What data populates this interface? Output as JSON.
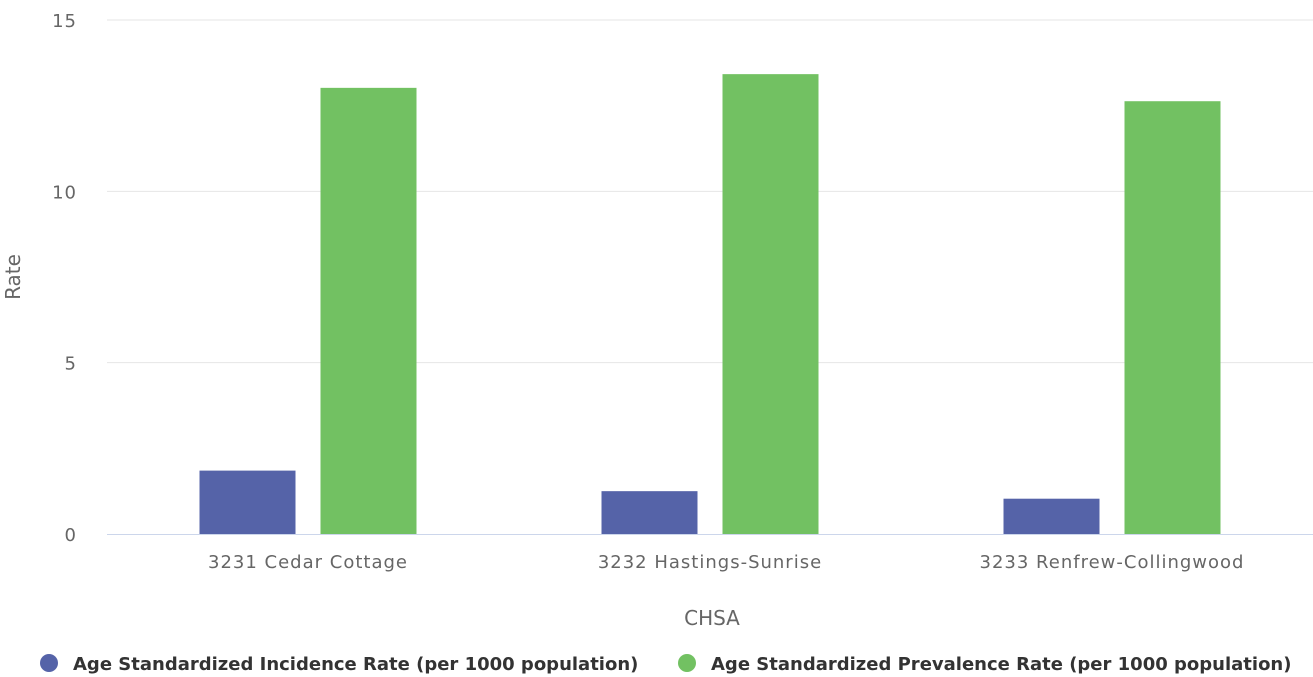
{
  "chart_data": {
    "type": "bar",
    "categories": [
      "3231 Cedar Cottage",
      "3232 Hastings-Sunrise",
      "3233 Renfrew-Collingwood"
    ],
    "series": [
      {
        "name": "Age Standardized Incidence Rate (per 1000 population)",
        "color": "#5563a8",
        "values": [
          1.85,
          1.25,
          1.03
        ]
      },
      {
        "name": "Age Standardized Prevalence Rate (per 1000 population)",
        "color": "#72c162",
        "values": [
          13.02,
          13.42,
          12.63
        ]
      }
    ],
    "xlabel": "CHSA",
    "ylabel": "Rate",
    "ylim": [
      0,
      15
    ],
    "yticks": [
      "0",
      "5",
      "10",
      "15"
    ],
    "ytick_values": [
      0,
      5,
      10,
      15
    ],
    "grid": true,
    "legend_position": "bottom"
  }
}
